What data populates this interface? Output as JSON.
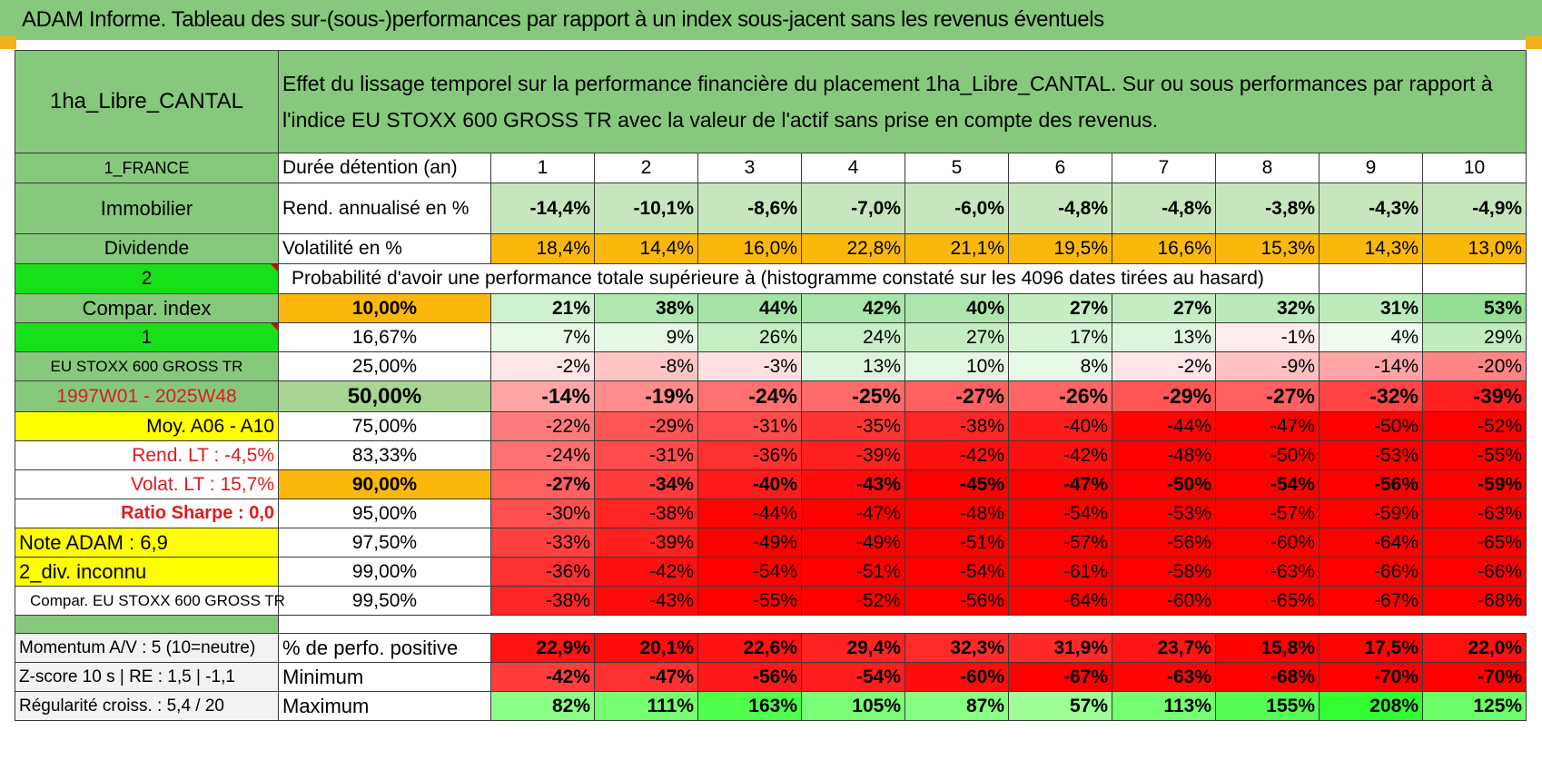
{
  "header": {
    "title": "ADAM Informe. Tableau des sur-(sous-)performances par rapport à un index sous-jacent sans les revenus éventuels"
  },
  "colors": {
    "green_label": "#86c97c",
    "bright_green": "#18e018",
    "yellow": "#ffff00",
    "orange": "#fbb80c",
    "red_text": "#e01b1b"
  },
  "table": {
    "fund_name": "1ha_Libre_CANTAL",
    "description": "Effet du lissage temporel sur la performance financière du placement 1ha_Libre_CANTAL. Sur ou sous performances par rapport à l'indice EU STOXX 600 GROSS TR avec la valeur de l'actif sans prise en compte des revenus.",
    "country": "1_FRANCE",
    "duration_label": "Durée détention (an)",
    "years": [
      "1",
      "2",
      "3",
      "4",
      "5",
      "6",
      "7",
      "8",
      "9",
      "10"
    ],
    "category": "Immobilier",
    "rend_label": "Rend. annualisé en %",
    "rend_values": [
      "-14,4%",
      "-10,1%",
      "-8,6%",
      "-7,0%",
      "-6,0%",
      "-4,8%",
      "-4,8%",
      "-3,8%",
      "-4,3%",
      "-4,9%"
    ],
    "subcategory": "Dividende",
    "vol_label": "Volatilité en %",
    "vol_values": [
      "18,4%",
      "14,4%",
      "16,0%",
      "22,8%",
      "21,1%",
      "19,5%",
      "16,6%",
      "15,3%",
      "14,3%",
      "13,0%"
    ],
    "param_2": "2",
    "proba_title": "Probabilité d'avoir une performance totale supérieure à (histogramme constaté sur les 4096 dates tirées au hasard)",
    "left_labels": [
      "Compar. index",
      "1",
      "EU STOXX 600 GROSS TR",
      "1997W01 - 2025W48",
      "Moy. A06 - A10",
      "Rend. LT :    -4,5%",
      "Volat. LT :    15,7%",
      "Ratio Sharpe :     0,0",
      "Note ADAM : 6,9",
      "2_div. inconnu",
      "Compar. EU STOXX 600 GROSS TR"
    ],
    "percentiles": [
      "10,00%",
      "16,67%",
      "25,00%",
      "50,00%",
      "75,00%",
      "83,33%",
      "90,00%",
      "95,00%",
      "97,50%",
      "99,00%",
      "99,50%"
    ],
    "proba_rows": [
      [
        "21%",
        "38%",
        "44%",
        "42%",
        "40%",
        "27%",
        "27%",
        "32%",
        "31%",
        "53%"
      ],
      [
        "7%",
        "9%",
        "26%",
        "24%",
        "27%",
        "17%",
        "13%",
        "-1%",
        "4%",
        "29%"
      ],
      [
        "-2%",
        "-8%",
        "-3%",
        "13%",
        "10%",
        "8%",
        "-2%",
        "-9%",
        "-14%",
        "-20%"
      ],
      [
        "-14%",
        "-19%",
        "-24%",
        "-25%",
        "-27%",
        "-26%",
        "-29%",
        "-27%",
        "-32%",
        "-39%"
      ],
      [
        "-22%",
        "-29%",
        "-31%",
        "-35%",
        "-38%",
        "-40%",
        "-44%",
        "-47%",
        "-50%",
        "-52%"
      ],
      [
        "-24%",
        "-31%",
        "-36%",
        "-39%",
        "-42%",
        "-42%",
        "-48%",
        "-50%",
        "-53%",
        "-55%"
      ],
      [
        "-27%",
        "-34%",
        "-40%",
        "-43%",
        "-45%",
        "-47%",
        "-50%",
        "-54%",
        "-56%",
        "-59%"
      ],
      [
        "-30%",
        "-38%",
        "-44%",
        "-47%",
        "-48%",
        "-54%",
        "-53%",
        "-57%",
        "-59%",
        "-63%"
      ],
      [
        "-33%",
        "-39%",
        "-49%",
        "-49%",
        "-51%",
        "-57%",
        "-56%",
        "-60%",
        "-64%",
        "-65%"
      ],
      [
        "-36%",
        "-42%",
        "-54%",
        "-51%",
        "-54%",
        "-61%",
        "-58%",
        "-63%",
        "-66%",
        "-66%"
      ],
      [
        "-38%",
        "-43%",
        "-55%",
        "-52%",
        "-56%",
        "-64%",
        "-60%",
        "-65%",
        "-67%",
        "-68%"
      ]
    ],
    "bottom_rows": [
      {
        "left": "Momentum A/V : 5 (10=neutre)",
        "label": "% de perfo. positive",
        "values": [
          "22,9%",
          "20,1%",
          "22,6%",
          "29,4%",
          "32,3%",
          "31,9%",
          "23,7%",
          "15,8%",
          "17,5%",
          "22,0%"
        ]
      },
      {
        "left": "Z-score 10 s | RE : 1,5 | -1,1",
        "label": "Minimum",
        "values": [
          "-42%",
          "-47%",
          "-56%",
          "-54%",
          "-60%",
          "-67%",
          "-63%",
          "-68%",
          "-70%",
          "-70%"
        ]
      },
      {
        "left": "Régularité croiss. : 5,4 / 20",
        "label": "Maximum",
        "values": [
          "82%",
          "111%",
          "163%",
          "105%",
          "87%",
          "57%",
          "113%",
          "155%",
          "208%",
          "125%"
        ]
      }
    ]
  }
}
